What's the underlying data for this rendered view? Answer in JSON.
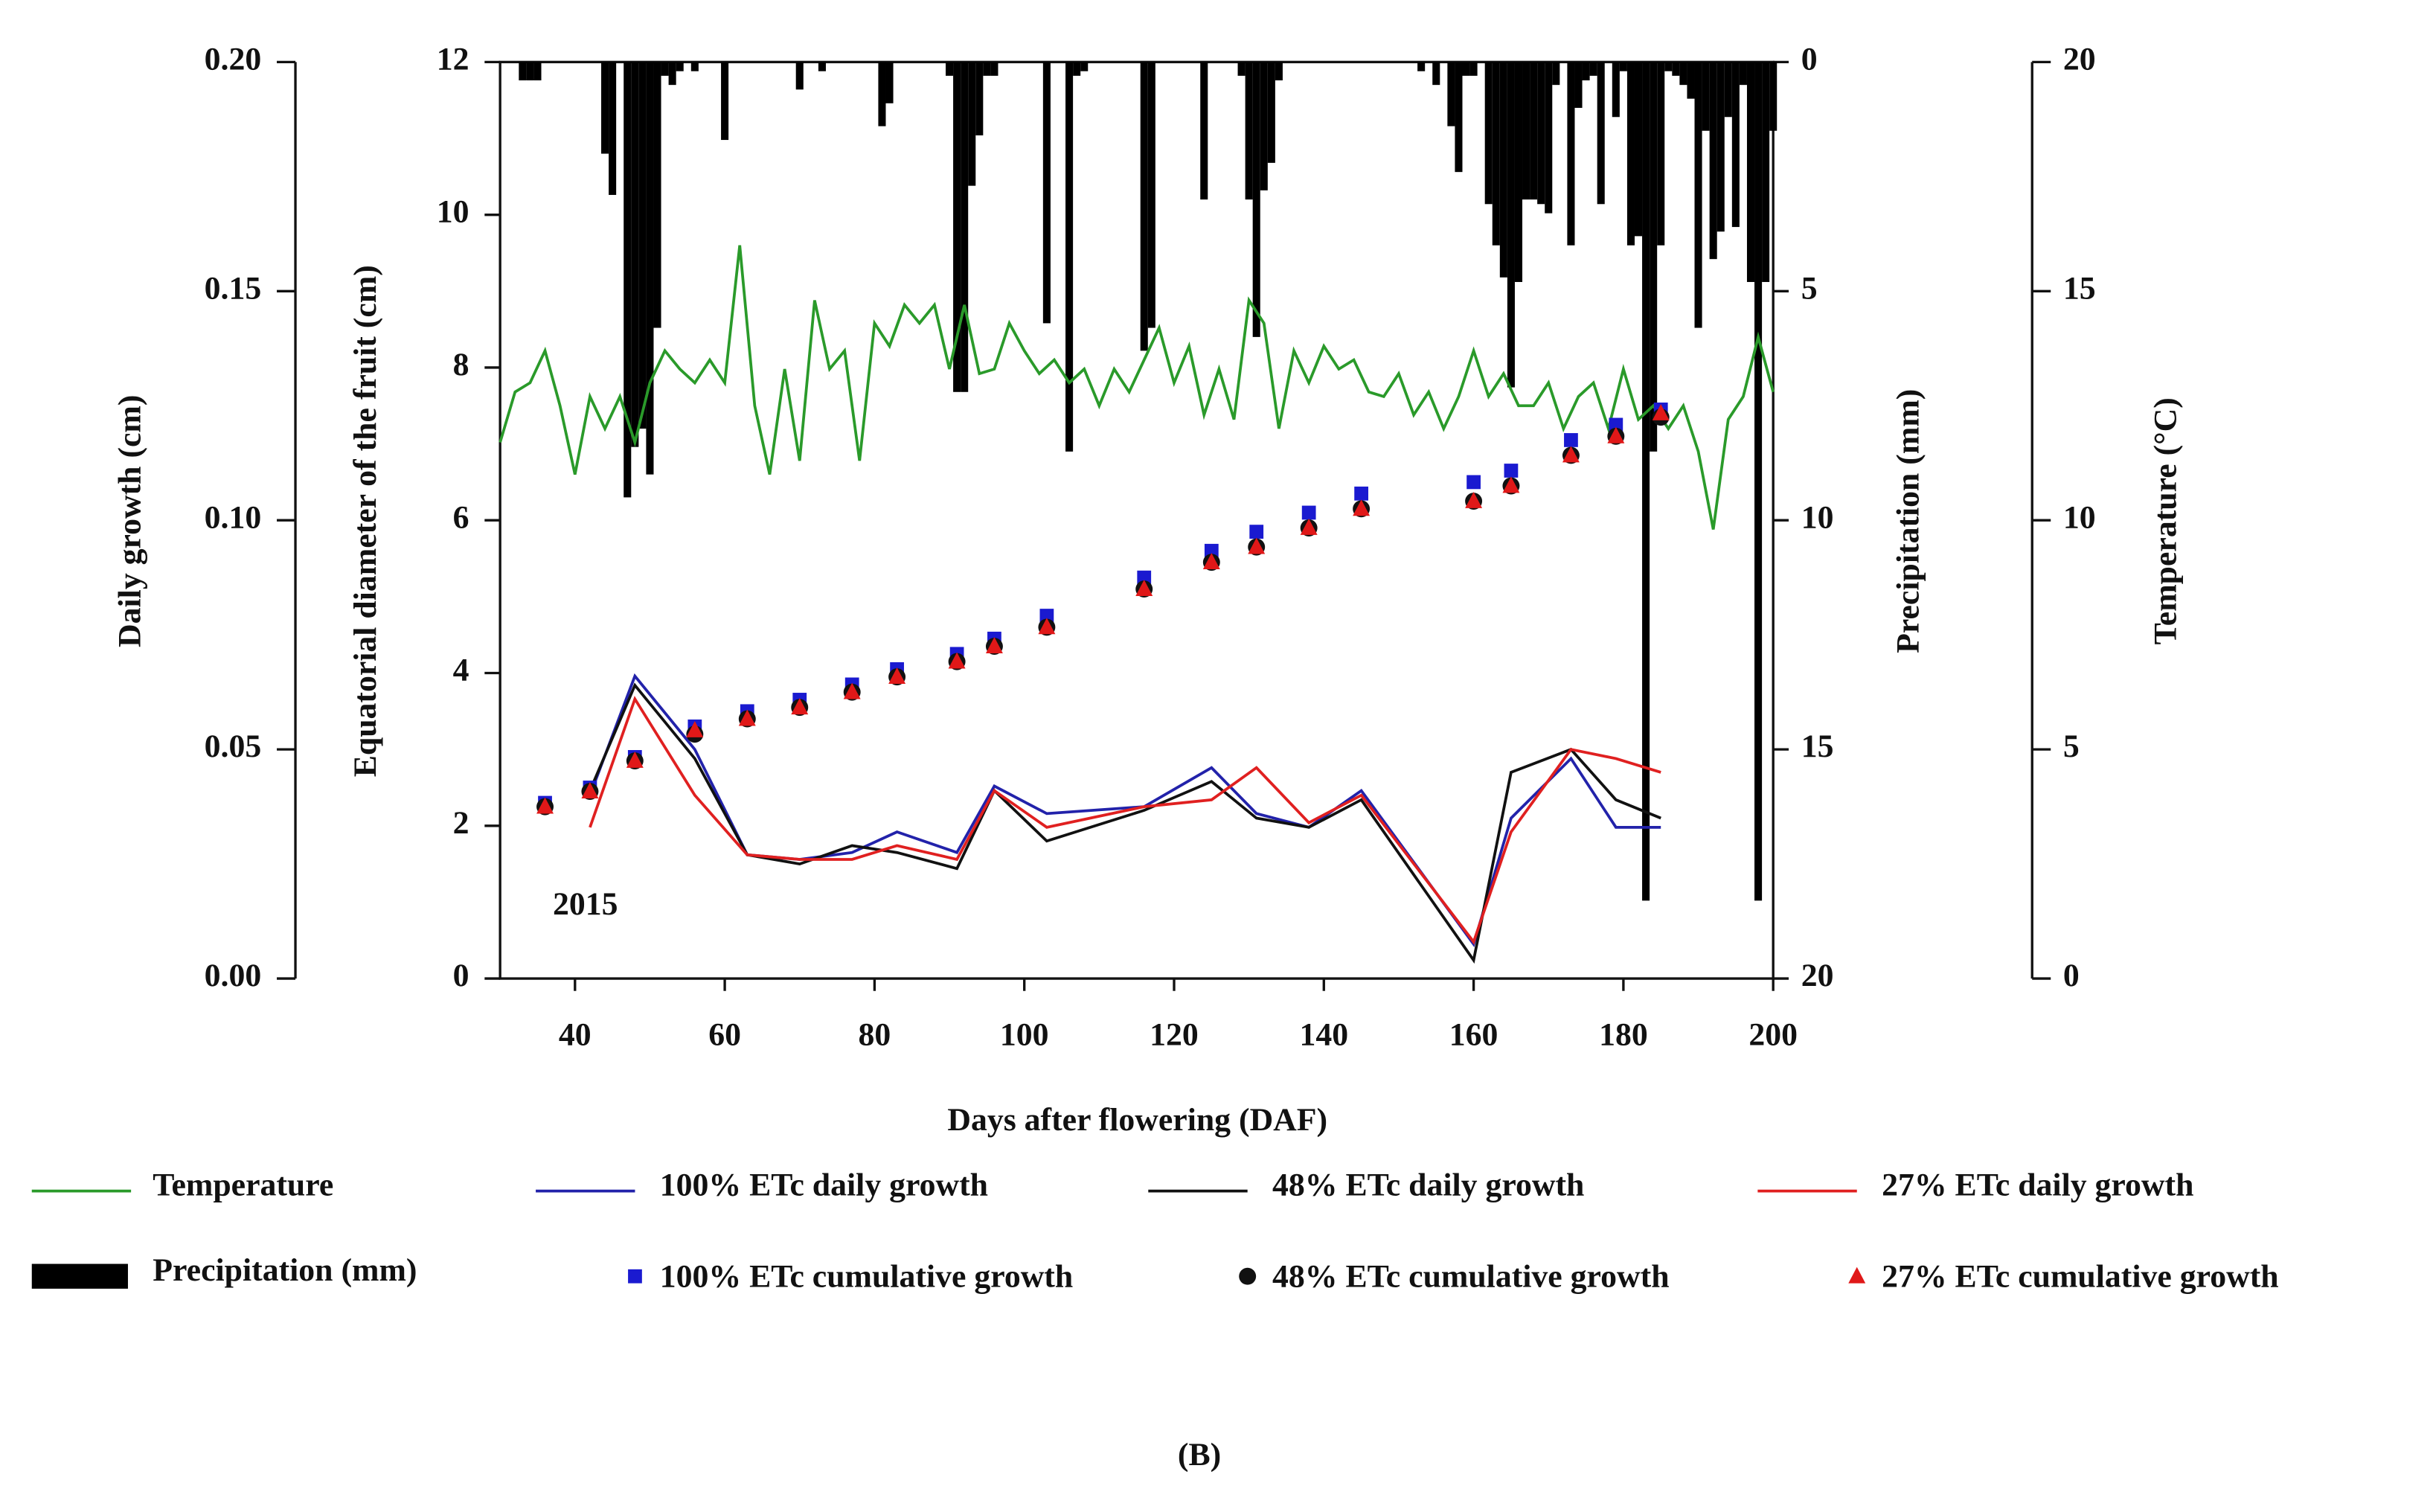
{
  "chart_data": {
    "type": "combo",
    "xlabel": "Days after flowering (DAF)",
    "ylabel": "Equatorial diameter of the fruit (cm)",
    "y2label": "Daily growth (cm)",
    "y3label": "Precipitation (mm)",
    "y4label": "Temperature (°C)",
    "annotation": "2015",
    "caption": "(B)",
    "xlim": [
      30,
      200
    ],
    "xticks": [
      40,
      60,
      80,
      100,
      120,
      140,
      160,
      180,
      200
    ],
    "ylim": [
      0,
      12
    ],
    "yticks": [
      0,
      2,
      4,
      6,
      8,
      10,
      12
    ],
    "y2lim": [
      0,
      0.2
    ],
    "y2ticks": [
      {
        "value": 0,
        "label": "0.00"
      },
      0.05,
      {
        "value": 0.1,
        "label": "0.10"
      },
      0.15,
      {
        "value": 0.2,
        "label": "0.20"
      }
    ],
    "y3lim": [
      20,
      0
    ],
    "y3ticks": [
      0,
      5,
      10,
      15,
      20
    ],
    "y4lim": [
      0,
      20
    ],
    "y4ticks": [
      0,
      5,
      10,
      15,
      20
    ],
    "series": [
      {
        "name": "Temperature",
        "kind": "line",
        "axis": "y4",
        "color": "#2a9a2a",
        "x": [
          30,
          32,
          34,
          36,
          38,
          40,
          42,
          44,
          46,
          48,
          50,
          52,
          54,
          56,
          58,
          60,
          62,
          64,
          66,
          68,
          70,
          72,
          74,
          76,
          78,
          80,
          82,
          84,
          86,
          88,
          90,
          92,
          94,
          96,
          98,
          100,
          102,
          104,
          106,
          108,
          110,
          112,
          114,
          116,
          118,
          120,
          122,
          124,
          126,
          128,
          130,
          132,
          134,
          136,
          138,
          140,
          142,
          144,
          146,
          148,
          150,
          152,
          154,
          156,
          158,
          160,
          162,
          164,
          166,
          168,
          170,
          172,
          174,
          176,
          178,
          180,
          182,
          184,
          186,
          188,
          190,
          192,
          194,
          196,
          198,
          200
        ],
        "values": [
          11.7,
          12.8,
          13.0,
          13.7,
          12.5,
          11.0,
          12.7,
          12.0,
          12.7,
          11.7,
          13.0,
          13.7,
          13.3,
          13.0,
          13.5,
          13.0,
          16.0,
          12.5,
          11.0,
          13.3,
          11.3,
          14.8,
          13.3,
          13.7,
          11.3,
          14.3,
          13.8,
          14.7,
          14.3,
          14.7,
          13.3,
          14.7,
          13.2,
          13.3,
          14.3,
          13.7,
          13.2,
          13.5,
          13.0,
          13.3,
          12.5,
          13.3,
          12.8,
          13.5,
          14.2,
          13.0,
          13.8,
          12.3,
          13.3,
          12.2,
          14.8,
          14.3,
          12.0,
          13.7,
          13.0,
          13.8,
          13.3,
          13.5,
          12.8,
          12.7,
          13.2,
          12.3,
          12.8,
          12.0,
          12.7,
          13.7,
          12.7,
          13.2,
          12.5,
          12.5,
          13.0,
          12.0,
          12.7,
          13.0,
          12.0,
          13.3,
          12.2,
          12.5,
          12.0,
          12.5,
          11.5,
          9.8,
          12.2,
          12.7,
          14.0,
          12.8
        ]
      },
      {
        "name": "100% ETc daily growth",
        "kind": "line",
        "axis": "y2",
        "color": "#2222aa",
        "x": [
          42,
          48,
          56,
          63,
          70,
          77,
          83,
          91,
          96,
          103,
          116,
          125,
          131,
          138,
          145,
          160,
          165,
          173,
          179,
          185
        ],
        "values": [
          0.04,
          0.066,
          0.05,
          0.027,
          0.026,
          0.0275,
          0.032,
          0.0275,
          0.042,
          0.036,
          0.0375,
          0.046,
          0.036,
          0.033,
          0.041,
          0.0075,
          0.035,
          0.048,
          0.033,
          0.033
        ]
      },
      {
        "name": "48% ETc daily growth",
        "kind": "line",
        "axis": "y2",
        "color": "#111111",
        "x": [
          42,
          48,
          56,
          63,
          70,
          77,
          83,
          91,
          96,
          103,
          116,
          125,
          131,
          138,
          145,
          160,
          165,
          173,
          179,
          185
        ],
        "values": [
          0.041,
          0.064,
          0.048,
          0.027,
          0.025,
          0.029,
          0.0275,
          0.024,
          0.041,
          0.03,
          0.0367,
          0.043,
          0.035,
          0.033,
          0.039,
          0.004,
          0.045,
          0.05,
          0.039,
          0.035
        ]
      },
      {
        "name": "27% ETc daily growth",
        "kind": "line",
        "axis": "y2",
        "color": "#e02020",
        "x": [
          42,
          48,
          56,
          63,
          70,
          77,
          83,
          91,
          96,
          103,
          116,
          125,
          131,
          138,
          145,
          160,
          165,
          173,
          179,
          185
        ],
        "values": [
          0.033,
          0.061,
          0.04,
          0.027,
          0.026,
          0.026,
          0.029,
          0.026,
          0.041,
          0.033,
          0.0375,
          0.039,
          0.046,
          0.034,
          0.04,
          0.008,
          0.032,
          0.05,
          0.048,
          0.045
        ]
      },
      {
        "name": "Precipitation (mm)",
        "kind": "bar",
        "axis": "y3",
        "color": "#000000",
        "x": [
          33,
          34,
          35,
          44,
          45,
          47,
          48,
          49,
          50,
          51,
          52,
          53,
          54,
          56,
          60,
          70,
          73,
          81,
          82,
          90,
          91,
          92,
          93,
          94,
          95,
          96,
          103,
          106,
          107,
          108,
          116,
          117,
          124,
          129,
          130,
          131,
          132,
          133,
          134,
          153,
          155,
          157,
          158,
          159,
          160,
          162,
          163,
          164,
          165,
          166,
          167,
          168,
          169,
          170,
          171,
          173,
          174,
          175,
          176,
          177,
          179,
          180,
          181,
          182,
          183,
          184,
          185,
          186,
          187,
          188,
          189,
          190,
          191,
          192,
          193,
          194,
          195,
          196,
          197,
          198,
          199,
          200
        ],
        "values": [
          0.4,
          0.4,
          0.4,
          2.0,
          2.9,
          9.5,
          8.4,
          8.0,
          9.0,
          5.8,
          0.3,
          0.5,
          0.2,
          0.2,
          1.7,
          0.6,
          0.2,
          1.4,
          0.9,
          0.3,
          7.2,
          7.2,
          2.7,
          1.6,
          0.3,
          0.3,
          5.7,
          8.5,
          0.3,
          0.2,
          6.3,
          5.8,
          3.0,
          0.3,
          3.0,
          6.0,
          2.8,
          2.2,
          0.4,
          0.2,
          0.5,
          1.4,
          2.4,
          0.3,
          0.3,
          3.1,
          4.0,
          4.7,
          7.1,
          4.8,
          3.0,
          3.0,
          3.1,
          3.3,
          0.5,
          4.0,
          1.0,
          0.4,
          0.3,
          3.1,
          1.2,
          0.2,
          4.0,
          3.8,
          18.3,
          8.5,
          4.0,
          0.2,
          0.3,
          0.5,
          0.8,
          5.8,
          1.5,
          4.3,
          3.7,
          1.2,
          3.6,
          0.5,
          4.8,
          18.3,
          4.8,
          1.5
        ]
      },
      {
        "name": "100% ETc cumulative growth",
        "kind": "scatter",
        "marker": "square",
        "axis": "y",
        "color": "#1a1ad0",
        "x": [
          36,
          42,
          48,
          56,
          63,
          70,
          77,
          83,
          91,
          96,
          103,
          116,
          125,
          131,
          138,
          145,
          160,
          165,
          173,
          179,
          185
        ],
        "values": [
          2.3,
          2.5,
          2.9,
          3.3,
          3.5,
          3.65,
          3.85,
          4.05,
          4.25,
          4.45,
          4.75,
          5.25,
          5.6,
          5.85,
          6.1,
          6.35,
          6.5,
          6.65,
          7.05,
          7.25,
          7.45
        ]
      },
      {
        "name": "48% ETc cumulative growth",
        "kind": "scatter",
        "marker": "circle",
        "axis": "y",
        "color": "#111111",
        "x": [
          36,
          42,
          48,
          56,
          63,
          70,
          77,
          83,
          91,
          96,
          103,
          116,
          125,
          131,
          138,
          145,
          160,
          165,
          173,
          179,
          185
        ],
        "values": [
          2.25,
          2.45,
          2.85,
          3.2,
          3.4,
          3.55,
          3.75,
          3.95,
          4.15,
          4.35,
          4.6,
          5.1,
          5.45,
          5.65,
          5.9,
          6.15,
          6.25,
          6.45,
          6.85,
          7.1,
          7.35
        ]
      },
      {
        "name": "27% ETc cumulative growth",
        "kind": "scatter",
        "marker": "triangle",
        "axis": "y",
        "color": "#e01818",
        "x": [
          36,
          42,
          48,
          56,
          63,
          70,
          77,
          83,
          91,
          96,
          103,
          116,
          125,
          131,
          138,
          145,
          160,
          165,
          173,
          179,
          185
        ],
        "values": [
          2.25,
          2.45,
          2.85,
          3.25,
          3.4,
          3.55,
          3.75,
          3.95,
          4.15,
          4.35,
          4.6,
          5.1,
          5.45,
          5.65,
          5.9,
          6.15,
          6.25,
          6.45,
          6.85,
          7.1,
          7.4
        ]
      }
    ]
  }
}
